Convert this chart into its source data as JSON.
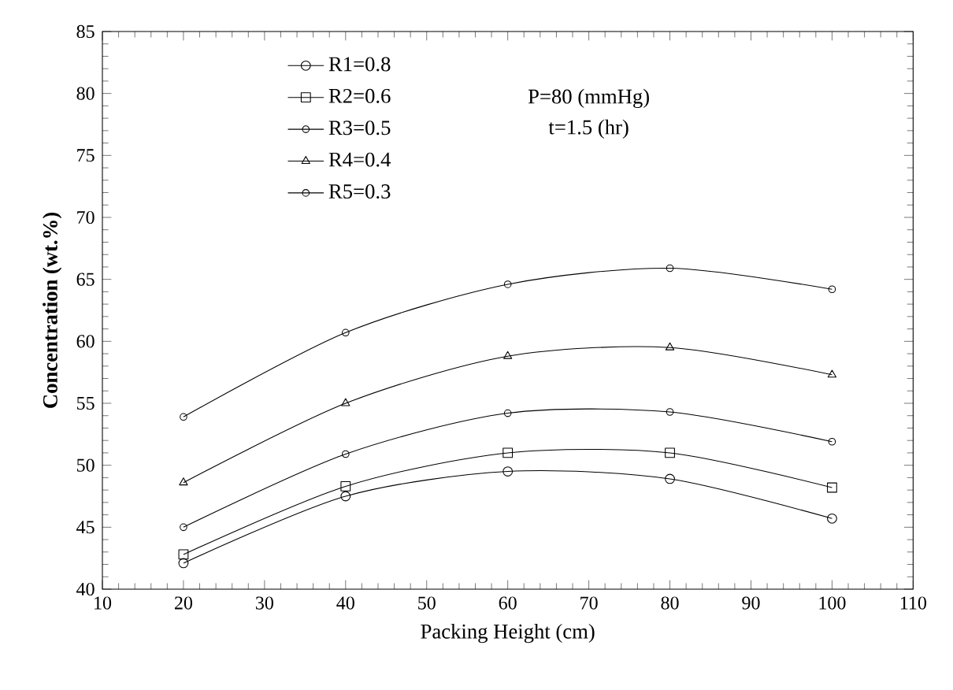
{
  "chart_data": {
    "type": "line",
    "xlabel": "Packing Height (cm)",
    "ylabel": "Concentration (wt.%)",
    "annotations": [
      "P=80 (mmHg)",
      "t=1.5 (hr)"
    ],
    "x": [
      20,
      40,
      60,
      80,
      100
    ],
    "series": [
      {
        "name": "R1=0.8",
        "color": "#000000",
        "marker": "circle",
        "values": [
          42.1,
          47.5,
          49.5,
          48.9,
          45.7
        ]
      },
      {
        "name": "R2=0.6",
        "color": "#000000",
        "marker": "square",
        "values": [
          42.8,
          48.3,
          51.0,
          51.0,
          48.2
        ]
      },
      {
        "name": "R3=0.5",
        "color": "#000000",
        "marker": "circle",
        "values": [
          45.0,
          50.9,
          54.2,
          54.3,
          51.9
        ]
      },
      {
        "name": "R4=0.4",
        "color": "#000000",
        "marker": "triangle",
        "values": [
          48.6,
          55.0,
          58.8,
          59.5,
          57.3
        ]
      },
      {
        "name": "R5=0.3",
        "color": "#000000",
        "marker": "circle",
        "values": [
          53.9,
          60.7,
          64.6,
          65.9,
          64.2
        ]
      }
    ],
    "xlim": [
      10,
      110
    ],
    "ylim": [
      40,
      85
    ],
    "xticks": [
      10,
      20,
      30,
      40,
      50,
      60,
      70,
      80,
      90,
      100,
      110
    ],
    "yticks": [
      40,
      45,
      50,
      55,
      60,
      65,
      70,
      75,
      80,
      85
    ],
    "grid": false,
    "legend": "top left",
    "line_style": "solid"
  }
}
